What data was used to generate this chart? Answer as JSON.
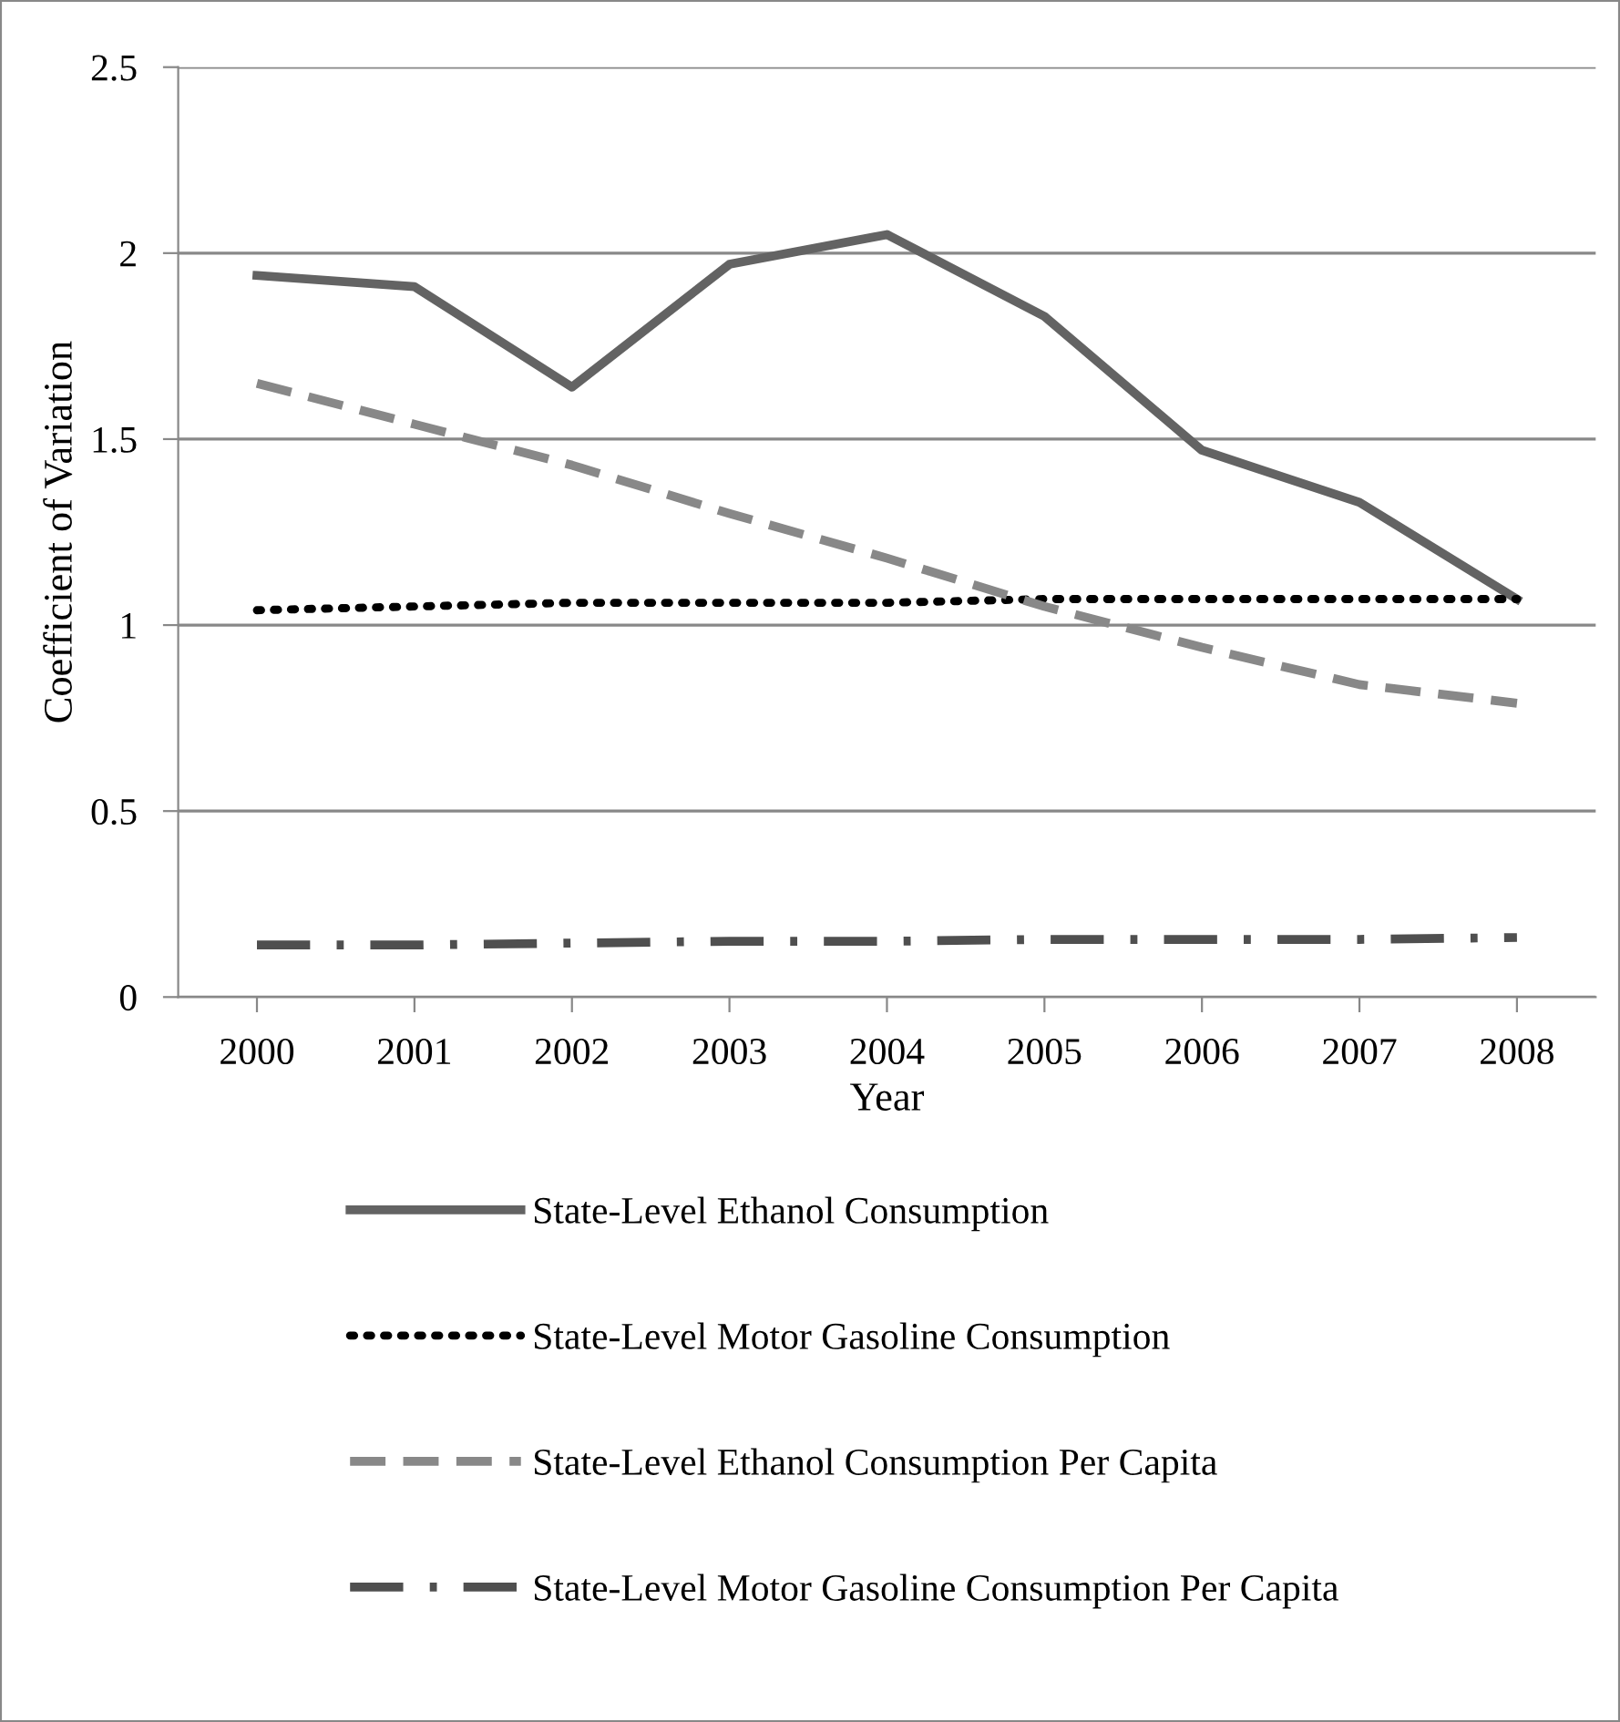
{
  "chart_data": {
    "type": "line",
    "xlabel": "Year",
    "ylabel": "Coefficient of Variation",
    "categories": [
      "2000",
      "2001",
      "2002",
      "2003",
      "2004",
      "2005",
      "2006",
      "2007",
      "2008"
    ],
    "series": [
      {
        "name": "State-Level Ethanol Consumption",
        "color": "#636363",
        "line_style": "solid",
        "values": [
          1.94,
          1.91,
          1.64,
          1.97,
          2.05,
          1.83,
          1.47,
          1.33,
          1.07
        ]
      },
      {
        "name": "State-Level Motor Gasoline Consumption",
        "color": "#000000",
        "line_style": "dotted",
        "values": [
          1.04,
          1.05,
          1.06,
          1.06,
          1.06,
          1.07,
          1.07,
          1.07,
          1.07
        ]
      },
      {
        "name": "State-Level Ethanol Consumption Per Capita",
        "color": "#888888",
        "line_style": "dashed",
        "values": [
          1.65,
          1.54,
          1.43,
          1.3,
          1.18,
          1.05,
          0.94,
          0.84,
          0.79
        ]
      },
      {
        "name": "State-Level Motor Gasoline Consumption Per Capita",
        "color": "#4f4f4f",
        "line_style": "dashdot",
        "values": [
          0.14,
          0.14,
          0.145,
          0.15,
          0.15,
          0.155,
          0.155,
          0.155,
          0.16
        ]
      }
    ],
    "ylim": [
      0,
      2.5
    ],
    "yticks": [
      0,
      0.5,
      1,
      1.5,
      2,
      2.5
    ],
    "grid": "y",
    "legend": "bottom",
    "marker": "none"
  }
}
